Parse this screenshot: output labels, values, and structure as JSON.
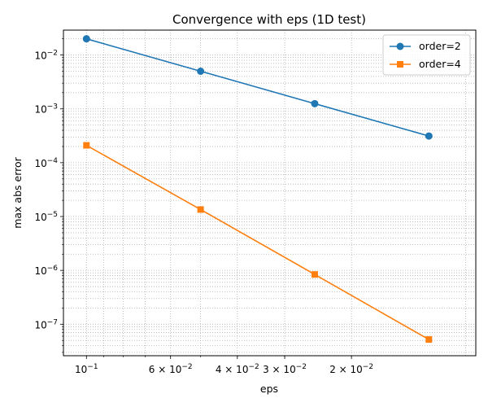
{
  "chart_data": {
    "type": "line",
    "title": "Convergence with eps (1D test)",
    "xlabel": "eps",
    "ylabel": "max abs error",
    "x_scale": "log",
    "y_scale": "log",
    "x_axis_inverted": true,
    "xlim": [
      0.115,
      0.0094
    ],
    "ylim": [
      2.6e-08,
      0.029
    ],
    "grid": "on (major and minor, dotted)",
    "legend_position": "top-right",
    "x": [
      0.1,
      0.05,
      0.025,
      0.0125
    ],
    "series": [
      {
        "name": "order=2",
        "color": "#1f77b4",
        "marker": "circle",
        "values": [
          0.02,
          0.005,
          0.00125,
          0.000313
        ]
      },
      {
        "name": "order=4",
        "color": "#ff7f0e",
        "marker": "square",
        "values": [
          0.00021,
          1.35e-05,
          8.4e-07,
          5.2e-08
        ]
      }
    ],
    "x_ticks": [
      {
        "value": 0.1,
        "base": "10",
        "exp": "−1"
      },
      {
        "value": 0.06,
        "base": "6 × 10",
        "exp": "−2"
      },
      {
        "value": 0.04,
        "base": "4 × 10",
        "exp": "−2"
      },
      {
        "value": 0.03,
        "base": "3 × 10",
        "exp": "−2"
      },
      {
        "value": 0.02,
        "base": "2 × 10",
        "exp": "−2"
      }
    ],
    "y_ticks": [
      {
        "value": 0.01,
        "base": "10",
        "exp": "−2"
      },
      {
        "value": 0.001,
        "base": "10",
        "exp": "−3"
      },
      {
        "value": 0.0001,
        "base": "10",
        "exp": "−4"
      },
      {
        "value": 1e-05,
        "base": "10",
        "exp": "−5"
      },
      {
        "value": 1e-06,
        "base": "10",
        "exp": "−6"
      },
      {
        "value": 1e-07,
        "base": "10",
        "exp": "−7"
      }
    ]
  }
}
